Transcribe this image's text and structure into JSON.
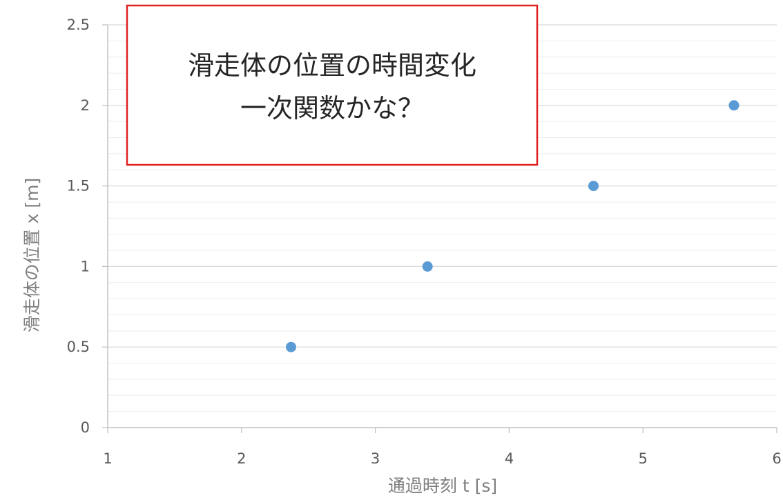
{
  "chart_data": {
    "type": "scatter",
    "title": "",
    "xlabel": "通過時刻 t [s]",
    "ylabel": "滑走体の位置 x [m]",
    "xlim": [
      1,
      6
    ],
    "ylim": [
      0,
      2.5
    ],
    "xticks": [
      "1",
      "2",
      "3",
      "4",
      "5",
      "6"
    ],
    "yticks": [
      "0",
      "0.5",
      "1",
      "1.5",
      "2",
      "2.5"
    ],
    "major_y_step": 0.5,
    "minor_y_step": 0.1,
    "grid": true,
    "legend": "none",
    "series": [
      {
        "color": "#5b9bd5",
        "points": [
          {
            "x": 2.37,
            "y": 0.5
          },
          {
            "x": 3.39,
            "y": 1.0
          },
          {
            "x": 4.63,
            "y": 1.5
          },
          {
            "x": 5.68,
            "y": 2.0
          }
        ]
      }
    ],
    "annotation": {
      "lines": [
        "滑走体の位置の時間変化",
        "一次関数かな？"
      ],
      "border_color": "#e02020"
    }
  },
  "colors": {
    "major_grid": "#d9d9d9",
    "minor_grid": "#eeeeee",
    "axis": "#bfbfbf"
  }
}
